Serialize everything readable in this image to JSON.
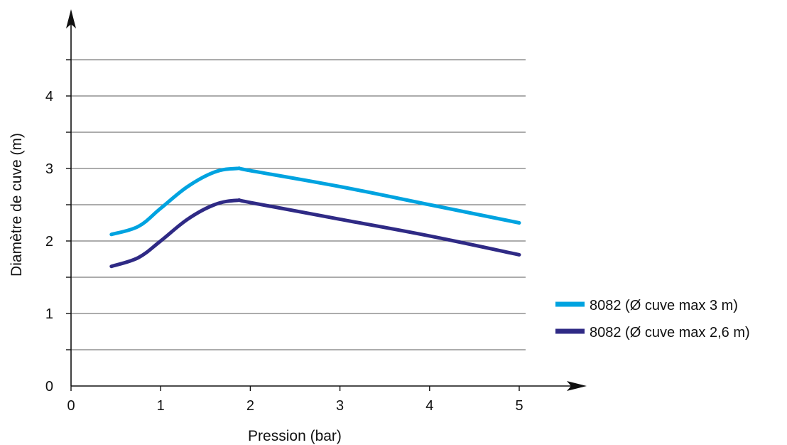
{
  "chart_data": {
    "type": "line",
    "title": "",
    "xlabel": "Pression (bar)",
    "ylabel": "Diamètre de cuve (m)",
    "xlim": [
      0,
      5
    ],
    "ylim": [
      0,
      4.5
    ],
    "x_ticks": [
      "0",
      "1",
      "2",
      "3",
      "4",
      "5"
    ],
    "y_ticks": [
      "0",
      "1",
      "2",
      "3",
      "4"
    ],
    "grid": true,
    "legend_position": "right",
    "series": [
      {
        "name": "8082 (Ø cuve max 3 m)",
        "color": "#00a3e0",
        "x": [
          0.45,
          0.75,
          1.0,
          1.3,
          1.6,
          1.85,
          2.0,
          3.0,
          4.0,
          5.0
        ],
        "y": [
          2.09,
          2.2,
          2.45,
          2.75,
          2.95,
          3.0,
          2.97,
          2.75,
          2.5,
          2.25
        ]
      },
      {
        "name": "8082 (Ø cuve max 2,6 m)",
        "color": "#2f2a85",
        "x": [
          0.45,
          0.75,
          1.0,
          1.3,
          1.6,
          1.85,
          2.0,
          3.0,
          4.0,
          5.0
        ],
        "y": [
          1.65,
          1.77,
          2.0,
          2.3,
          2.5,
          2.56,
          2.53,
          2.3,
          2.07,
          1.81
        ]
      }
    ]
  }
}
